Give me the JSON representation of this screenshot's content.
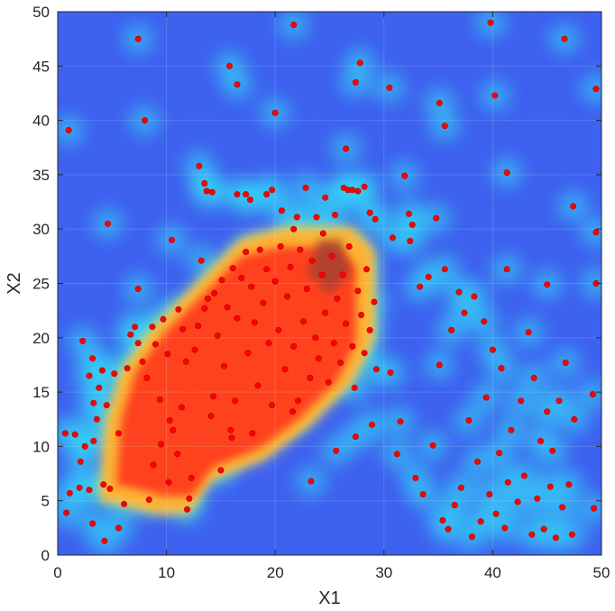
{
  "chart_data": {
    "type": "scatter",
    "title": "",
    "xlabel": "X1",
    "ylabel": "X2",
    "xlim": [
      0,
      50
    ],
    "ylim": [
      0,
      50
    ],
    "xticks": [
      0,
      10,
      20,
      30,
      40,
      50
    ],
    "yticks": [
      0,
      5,
      10,
      15,
      20,
      25,
      30,
      35,
      40,
      45,
      50
    ],
    "xtick_labels": [
      "0",
      "10",
      "20",
      "30",
      "40",
      "50"
    ],
    "ytick_labels": [
      "0",
      "5",
      "10",
      "15",
      "20",
      "25",
      "30",
      "35",
      "40",
      "45",
      "50"
    ],
    "grid": true,
    "background": "density heatmap (jet colormap) underlaid beneath points",
    "colors": {
      "point": "#ff0000",
      "point_edge": "#b40000",
      "low_density": "#3a5cf0",
      "mid_density": "#34dcf5",
      "high_density": "#ff3a1f",
      "peak_density": "#a04030",
      "axis": "#262626"
    },
    "heat_regions": [
      {
        "level": "high",
        "polygon": [
          [
            4,
            5
          ],
          [
            4.5,
            12
          ],
          [
            6,
            17
          ],
          [
            9,
            21
          ],
          [
            13,
            25
          ],
          [
            17,
            29
          ],
          [
            21,
            30
          ],
          [
            27,
            30
          ],
          [
            29,
            28
          ],
          [
            29,
            20
          ],
          [
            27,
            16
          ],
          [
            23,
            12
          ],
          [
            19,
            9
          ],
          [
            14,
            7
          ],
          [
            12,
            4
          ],
          [
            9,
            4
          ],
          [
            5,
            5
          ]
        ]
      },
      {
        "level": "peak",
        "polygon": [
          [
            23,
            26
          ],
          [
            24,
            29
          ],
          [
            26,
            29
          ],
          [
            27,
            26
          ],
          [
            25,
            24
          ]
        ]
      }
    ],
    "series": [
      {
        "points": [
          [
            1,
            39.1
          ],
          [
            7.4,
            47.5
          ],
          [
            8,
            40
          ],
          [
            4.6,
            30.5
          ],
          [
            10.5,
            29
          ],
          [
            15.8,
            45
          ],
          [
            16.5,
            43.3
          ],
          [
            20,
            40.7
          ],
          [
            21.7,
            48.8
          ],
          [
            27.4,
            43.5
          ],
          [
            27.8,
            45.3
          ],
          [
            30.5,
            43
          ],
          [
            35.1,
            41.6
          ],
          [
            35.6,
            39.5
          ],
          [
            39.8,
            49
          ],
          [
            40.2,
            42.3
          ],
          [
            41.3,
            35.2
          ],
          [
            46.6,
            47.5
          ],
          [
            49.5,
            42.9
          ],
          [
            47.4,
            32.1
          ],
          [
            49.5,
            29.7
          ],
          [
            49.5,
            25
          ],
          [
            41.3,
            26.3
          ],
          [
            45,
            24.9
          ],
          [
            7.4,
            24.5
          ],
          [
            13,
            35.8
          ],
          [
            13.5,
            34.2
          ],
          [
            13.7,
            33.5
          ],
          [
            14.2,
            33.4
          ],
          [
            16.5,
            33.2
          ],
          [
            17.3,
            33.2
          ],
          [
            17.7,
            32.7
          ],
          [
            19.2,
            33.2
          ],
          [
            19.7,
            33.6
          ],
          [
            20.6,
            31.7
          ],
          [
            21.7,
            30
          ],
          [
            22,
            31.1
          ],
          [
            22.8,
            33.8
          ],
          [
            23.8,
            31.1
          ],
          [
            24.4,
            29.6
          ],
          [
            24.6,
            32.9
          ],
          [
            25.5,
            31.3
          ],
          [
            26.3,
            33.8
          ],
          [
            26.7,
            33.6
          ],
          [
            27.1,
            33.6
          ],
          [
            27.6,
            33.5
          ],
          [
            28.2,
            33.9
          ],
          [
            28.7,
            31.5
          ],
          [
            29.2,
            30.9
          ],
          [
            26.5,
            37.4
          ],
          [
            0.7,
            11.2
          ],
          [
            0.8,
            3.9
          ],
          [
            1.1,
            5.7
          ],
          [
            1.6,
            11.1
          ],
          [
            2,
            6.2
          ],
          [
            2.1,
            8.6
          ],
          [
            2.3,
            19.7
          ],
          [
            2.5,
            10
          ],
          [
            2.9,
            16.5
          ],
          [
            2.9,
            6
          ],
          [
            3.2,
            18.1
          ],
          [
            3.2,
            2.9
          ],
          [
            3.3,
            14
          ],
          [
            3.3,
            10.5
          ],
          [
            3.6,
            12.5
          ],
          [
            3.8,
            15.4
          ],
          [
            4.1,
            17
          ],
          [
            4.2,
            6.5
          ],
          [
            4.3,
            1.3
          ],
          [
            4.5,
            13.8
          ],
          [
            4.8,
            6.1
          ],
          [
            5.2,
            16.7
          ],
          [
            5.6,
            11.2
          ],
          [
            5.6,
            2.5
          ],
          [
            6.1,
            4.7
          ],
          [
            6.4,
            17.2
          ],
          [
            6.7,
            20.3
          ],
          [
            7.1,
            21
          ],
          [
            7.4,
            19.5
          ],
          [
            7.8,
            17.8
          ],
          [
            8.2,
            16.3
          ],
          [
            8.4,
            5.1
          ],
          [
            8.7,
            21
          ],
          [
            9,
            19.4
          ],
          [
            9.4,
            14.3
          ],
          [
            9.7,
            21.7
          ],
          [
            10.1,
            18.5
          ],
          [
            10.3,
            12.4
          ],
          [
            11.1,
            22.6
          ],
          [
            11.5,
            20.8
          ],
          [
            11.8,
            17.8
          ],
          [
            11.9,
            4.2
          ],
          [
            12.3,
            7.1
          ],
          [
            12.6,
            18.9
          ],
          [
            12.9,
            21.1
          ],
          [
            13.2,
            27.1
          ],
          [
            13.5,
            22.7
          ],
          [
            13.8,
            23.6
          ],
          [
            14.1,
            12.8
          ],
          [
            14.3,
            14.6
          ],
          [
            14.4,
            24.1
          ],
          [
            14.7,
            20.2
          ],
          [
            15.1,
            25.3
          ],
          [
            15.3,
            17.4
          ],
          [
            15.6,
            22.8
          ],
          [
            15.9,
            11.5
          ],
          [
            16.1,
            26.4
          ],
          [
            16.3,
            14.2
          ],
          [
            16.5,
            21.8
          ],
          [
            16.9,
            25.5
          ],
          [
            17.3,
            27.9
          ],
          [
            17.5,
            18.6
          ],
          [
            17.8,
            24.7
          ],
          [
            18.1,
            21.4
          ],
          [
            18.4,
            15.6
          ],
          [
            18.6,
            28.1
          ],
          [
            18.9,
            23.2
          ],
          [
            19.2,
            26.3
          ],
          [
            19.4,
            19.5
          ],
          [
            19.7,
            13.8
          ],
          [
            20,
            25.2
          ],
          [
            20.3,
            20.7
          ],
          [
            20.5,
            28.4
          ],
          [
            20.9,
            17.1
          ],
          [
            21.1,
            23.8
          ],
          [
            21.4,
            26.5
          ],
          [
            21.7,
            19.2
          ],
          [
            22.1,
            14.2
          ],
          [
            22.3,
            28.1
          ],
          [
            22.6,
            21.5
          ],
          [
            22.9,
            24.5
          ],
          [
            23.2,
            16.3
          ],
          [
            23.4,
            27.1
          ],
          [
            23.7,
            20
          ],
          [
            24,
            18.1
          ],
          [
            24.3,
            25.8
          ],
          [
            24.6,
            22.3
          ],
          [
            24.9,
            15.9
          ],
          [
            25.2,
            27.5
          ],
          [
            25.4,
            19.5
          ],
          [
            25.7,
            23.6
          ],
          [
            26,
            17.7
          ],
          [
            26.2,
            25.8
          ],
          [
            26.5,
            21.3
          ],
          [
            26.8,
            28.4
          ],
          [
            27.1,
            19.2
          ],
          [
            27.3,
            15.4
          ],
          [
            27.6,
            24.3
          ],
          [
            27.9,
            22.1
          ],
          [
            28.2,
            18.6
          ],
          [
            28.4,
            26.3
          ],
          [
            28.7,
            20.7
          ],
          [
            29.1,
            23.3
          ],
          [
            29.3,
            17.1
          ],
          [
            8.8,
            8.3
          ],
          [
            9.5,
            10.2
          ],
          [
            10.2,
            6.7
          ],
          [
            10.6,
            11.5
          ],
          [
            11,
            9.3
          ],
          [
            11.4,
            13.6
          ],
          [
            12.1,
            5.2
          ],
          [
            15,
            7.8
          ],
          [
            16,
            10.8
          ],
          [
            17.9,
            11.2
          ],
          [
            21.6,
            13.2
          ],
          [
            23.3,
            6.8
          ],
          [
            25.6,
            9.6
          ],
          [
            27.4,
            10.9
          ],
          [
            28.9,
            12
          ],
          [
            30.6,
            16.8
          ],
          [
            30.8,
            29.2
          ],
          [
            31.2,
            9.3
          ],
          [
            31.5,
            12.3
          ],
          [
            31.9,
            34.9
          ],
          [
            32.3,
            31.4
          ],
          [
            32.4,
            28.9
          ],
          [
            32.6,
            30.4
          ],
          [
            32.9,
            7.1
          ],
          [
            33.3,
            24.7
          ],
          [
            33.6,
            5.6
          ],
          [
            34.1,
            25.6
          ],
          [
            34.5,
            10.1
          ],
          [
            34.8,
            31
          ],
          [
            35.1,
            17.5
          ],
          [
            35.4,
            3.2
          ],
          [
            35.6,
            26.3
          ],
          [
            35.9,
            2.4
          ],
          [
            36.2,
            20.7
          ],
          [
            36.5,
            4.6
          ],
          [
            36.9,
            24.2
          ],
          [
            37.1,
            6.2
          ],
          [
            37.4,
            22.3
          ],
          [
            37.8,
            12.4
          ],
          [
            38.1,
            1.7
          ],
          [
            38.3,
            23.8
          ],
          [
            38.6,
            8.6
          ],
          [
            38.9,
            3.1
          ],
          [
            39.2,
            21.5
          ],
          [
            39.4,
            14.5
          ],
          [
            39.7,
            5.6
          ],
          [
            40,
            18.9
          ],
          [
            40.3,
            3.8
          ],
          [
            40.6,
            9.4
          ],
          [
            40.8,
            17.2
          ],
          [
            41.1,
            2.5
          ],
          [
            41.4,
            6.7
          ],
          [
            41.7,
            11.5
          ],
          [
            42.3,
            4.9
          ],
          [
            42.6,
            14.2
          ],
          [
            42.9,
            7.3
          ],
          [
            43.3,
            20.5
          ],
          [
            43.6,
            1.9
          ],
          [
            43.8,
            16.3
          ],
          [
            44.1,
            5.2
          ],
          [
            44.4,
            10.5
          ],
          [
            44.7,
            2.4
          ],
          [
            45,
            13.2
          ],
          [
            45.3,
            6.3
          ],
          [
            45.5,
            9.6
          ],
          [
            45.8,
            1.6
          ],
          [
            46.1,
            14.2
          ],
          [
            46.4,
            4.4
          ],
          [
            46.7,
            17.7
          ],
          [
            47,
            6.5
          ],
          [
            47.3,
            1.9
          ],
          [
            47.5,
            12.5
          ],
          [
            49.2,
            14.8
          ],
          [
            49.3,
            4.3
          ]
        ]
      }
    ]
  }
}
